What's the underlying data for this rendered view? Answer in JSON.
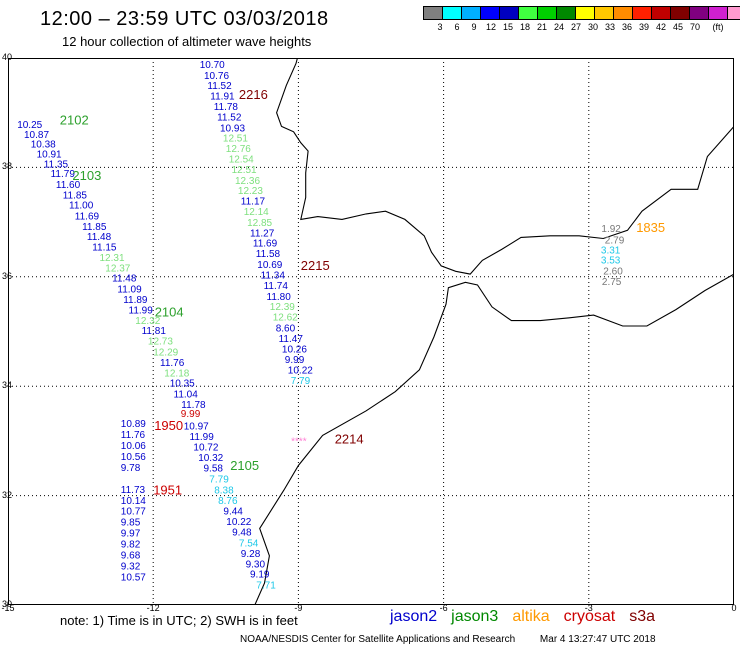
{
  "header": {
    "title": "12:00 – 23:59 UTC 03/03/2018",
    "subtitle": "12 hour collection of altimeter wave heights"
  },
  "legend": {
    "colors": [
      "#808080",
      "#00ffff",
      "#00b0ff",
      "#0000ff",
      "#0000c0",
      "#40ff40",
      "#00d000",
      "#008800",
      "#ffff00",
      "#ffc800",
      "#ff8c00",
      "#ff2000",
      "#c00000",
      "#800000",
      "#800080",
      "#d020d0",
      "#ff9ad0",
      "#000000"
    ],
    "ticks": [
      "3",
      "6",
      "9",
      "12",
      "15",
      "18",
      "21",
      "24",
      "27",
      "30",
      "33",
      "36",
      "39",
      "42",
      "45",
      "70",
      "(ft)"
    ]
  },
  "axes": {
    "x_labels": [
      "-15",
      "-12",
      "-9",
      "-6",
      "-3",
      "0"
    ],
    "y_labels": [
      "40",
      "38",
      "36",
      "34",
      "32",
      "30"
    ]
  },
  "track_colors": {
    "jason2": "#0000cc",
    "jason3": "#2ca02c",
    "jason3_value": "#7ee07e",
    "altika": "#ff9900",
    "cryosat": "#cc0000",
    "s3a": "#800000",
    "gray": "#777777",
    "cyan": "#1ec8e8",
    "pink": "#ff7fd4"
  },
  "tracks": [
    {
      "name": "pass-2102",
      "label": "2102",
      "label_color": "jason3",
      "label_pos": [
        -13.93,
        38.78
      ],
      "values": [
        {
          "v": "10.25",
          "c": "jason2",
          "p": [
            -14.81,
            38.72
          ]
        },
        {
          "v": "10.87",
          "c": "jason2",
          "p": [
            -14.67,
            38.54
          ]
        },
        {
          "v": "10.38",
          "c": "jason2",
          "p": [
            -14.53,
            38.36
          ]
        },
        {
          "v": "10.91",
          "c": "jason2",
          "p": [
            -14.41,
            38.18
          ]
        }
      ]
    },
    {
      "name": "pass-2103",
      "label": "2103",
      "label_color": "jason3",
      "label_pos": [
        -13.67,
        37.77
      ],
      "values": [
        {
          "v": "11.35",
          "c": "jason2",
          "p": [
            -14.26,
            38.0
          ]
        },
        {
          "v": "11.79",
          "c": "jason2",
          "p": [
            -14.12,
            37.82
          ]
        },
        {
          "v": "11.60",
          "c": "jason2",
          "p": [
            -14.01,
            37.62
          ]
        },
        {
          "v": "11.85",
          "c": "jason2",
          "p": [
            -13.87,
            37.43
          ]
        },
        {
          "v": "11.00",
          "c": "jason2",
          "p": [
            -13.74,
            37.25
          ]
        },
        {
          "v": "11.69",
          "c": "jason2",
          "p": [
            -13.62,
            37.05
          ]
        },
        {
          "v": "11.85",
          "c": "jason2",
          "p": [
            -13.47,
            36.86
          ]
        },
        {
          "v": "11.48",
          "c": "jason2",
          "p": [
            -13.37,
            36.67
          ]
        },
        {
          "v": "11.15",
          "c": "jason2",
          "p": [
            -13.26,
            36.48
          ]
        },
        {
          "v": "12.31",
          "c": "jason3_value",
          "p": [
            -13.11,
            36.29
          ]
        },
        {
          "v": "12.37",
          "c": "jason3_value",
          "p": [
            -12.99,
            36.1
          ]
        },
        {
          "v": "11.48",
          "c": "jason2",
          "p": [
            -12.85,
            35.91
          ]
        },
        {
          "v": "11.09",
          "c": "jason2",
          "p": [
            -12.74,
            35.71
          ]
        },
        {
          "v": "11.89",
          "c": "jason2",
          "p": [
            -12.62,
            35.52
          ]
        },
        {
          "v": "11.99",
          "c": "jason2",
          "p": [
            -12.51,
            35.33
          ]
        }
      ]
    },
    {
      "name": "pass-2104",
      "label": "2104",
      "label_color": "jason3",
      "label_pos": [
        -11.97,
        35.27
      ],
      "values": [
        {
          "v": "12.32",
          "c": "jason3_value",
          "p": [
            -12.37,
            35.14
          ]
        },
        {
          "v": "11.81",
          "c": "jason2",
          "p": [
            -12.24,
            34.95
          ]
        },
        {
          "v": "12.73",
          "c": "jason3_value",
          "p": [
            -12.11,
            34.76
          ]
        },
        {
          "v": "12.29",
          "c": "jason3_value",
          "p": [
            -12.0,
            34.56
          ]
        },
        {
          "v": "11.76",
          "c": "jason2",
          "p": [
            -11.86,
            34.37
          ]
        },
        {
          "v": "12.18",
          "c": "jason3_value",
          "p": [
            -11.77,
            34.18
          ]
        },
        {
          "v": "10.35",
          "c": "jason2",
          "p": [
            -11.66,
            33.99
          ]
        },
        {
          "v": "11.04",
          "c": "jason2",
          "p": [
            -11.58,
            33.79
          ]
        },
        {
          "v": "11.78",
          "c": "jason2",
          "p": [
            -11.42,
            33.6
          ]
        },
        {
          "v": "10.97",
          "c": "jason2",
          "p": [
            -11.37,
            33.21
          ]
        },
        {
          "v": "11.99",
          "c": "jason2",
          "p": [
            -11.25,
            33.02
          ]
        },
        {
          "v": "10.72",
          "c": "jason2",
          "p": [
            -11.17,
            32.82
          ]
        },
        {
          "v": "10.32",
          "c": "jason2",
          "p": [
            -11.07,
            32.63
          ]
        },
        {
          "v": "9.58",
          "c": "jason2",
          "p": [
            -10.96,
            32.44
          ]
        },
        {
          "v": "7.79",
          "c": "cyan",
          "p": [
            -10.84,
            32.24
          ]
        },
        {
          "v": "8.38",
          "c": "cyan",
          "p": [
            -10.74,
            32.04
          ]
        },
        {
          "v": "8.76",
          "c": "cyan",
          "p": [
            -10.66,
            31.85
          ]
        },
        {
          "v": "9.44",
          "c": "jason2",
          "p": [
            -10.55,
            31.65
          ]
        },
        {
          "v": "10.22",
          "c": "jason2",
          "p": [
            -10.49,
            31.46
          ]
        },
        {
          "v": "9.48",
          "c": "jason2",
          "p": [
            -10.37,
            31.27
          ]
        },
        {
          "v": "7.54",
          "c": "cyan",
          "p": [
            -10.23,
            31.07
          ]
        },
        {
          "v": "9.28",
          "c": "jason2",
          "p": [
            -10.19,
            30.88
          ]
        },
        {
          "v": "9.30",
          "c": "jason2",
          "p": [
            -10.09,
            30.69
          ]
        },
        {
          "v": "9.19",
          "c": "jason2",
          "p": [
            -10.0,
            30.5
          ]
        },
        {
          "v": "7.71",
          "c": "cyan",
          "p": [
            -9.87,
            30.3
          ]
        }
      ]
    },
    {
      "name": "pass-2105",
      "label": "2105",
      "label_color": "jason3",
      "label_pos": [
        -10.41,
        32.47
      ],
      "values": []
    },
    {
      "name": "pass-2216",
      "label": "2216",
      "label_color": "s3a",
      "label_pos": [
        -10.23,
        39.25
      ],
      "values": [
        {
          "v": "10.70",
          "c": "jason2",
          "p": [
            -11.04,
            39.82
          ]
        },
        {
          "v": "10.76",
          "c": "jason2",
          "p": [
            -10.95,
            39.62
          ]
        },
        {
          "v": "11.52",
          "c": "jason2",
          "p": [
            -10.88,
            39.43
          ]
        },
        {
          "v": "11.91",
          "c": "jason2",
          "p": [
            -10.82,
            39.24
          ]
        },
        {
          "v": "11.78",
          "c": "jason2",
          "p": [
            -10.75,
            39.05
          ]
        },
        {
          "v": "11.52",
          "c": "jason2",
          "p": [
            -10.68,
            38.86
          ]
        },
        {
          "v": "10.93",
          "c": "jason2",
          "p": [
            -10.62,
            38.66
          ]
        },
        {
          "v": "12.51",
          "c": "jason3_value",
          "p": [
            -10.56,
            38.47
          ]
        },
        {
          "v": "12.76",
          "c": "jason3_value",
          "p": [
            -10.5,
            38.28
          ]
        },
        {
          "v": "12.54",
          "c": "jason3_value",
          "p": [
            -10.44,
            38.09
          ]
        },
        {
          "v": "12.51",
          "c": "jason3_value",
          "p": [
            -10.38,
            37.9
          ]
        },
        {
          "v": "12.36",
          "c": "jason3_value",
          "p": [
            -10.31,
            37.7
          ]
        },
        {
          "v": "12.23",
          "c": "jason3_value",
          "p": [
            -10.25,
            37.51
          ]
        },
        {
          "v": "11.17",
          "c": "jason2",
          "p": [
            -10.19,
            37.32
          ]
        },
        {
          "v": "12.14",
          "c": "jason3_value",
          "p": [
            -10.13,
            37.13
          ]
        },
        {
          "v": "12.85",
          "c": "jason3_value",
          "p": [
            -10.06,
            36.93
          ]
        },
        {
          "v": "11.27",
          "c": "jason2",
          "p": [
            -10.0,
            36.74
          ]
        },
        {
          "v": "11.69",
          "c": "jason2",
          "p": [
            -9.94,
            36.55
          ]
        },
        {
          "v": "11.58",
          "c": "jason2",
          "p": [
            -9.88,
            36.36
          ]
        }
      ]
    },
    {
      "name": "pass-2215",
      "label": "2215",
      "label_color": "s3a",
      "label_pos": [
        -8.95,
        36.12
      ],
      "values": [
        {
          "v": "10.69",
          "c": "jason2",
          "p": [
            -9.85,
            36.16
          ]
        },
        {
          "v": "11.34",
          "c": "jason2",
          "p": [
            -9.78,
            35.97
          ]
        },
        {
          "v": "11.74",
          "c": "jason2",
          "p": [
            -9.72,
            35.78
          ]
        },
        {
          "v": "11.80",
          "c": "jason2",
          "p": [
            -9.66,
            35.58
          ]
        },
        {
          "v": "12.39",
          "c": "jason3_value",
          "p": [
            -9.59,
            35.39
          ]
        },
        {
          "v": "12.62",
          "c": "jason3_value",
          "p": [
            -9.53,
            35.2
          ]
        },
        {
          "v": "8.60",
          "c": "jason2",
          "p": [
            -9.47,
            35.0
          ]
        },
        {
          "v": "11.47",
          "c": "jason2",
          "p": [
            -9.41,
            34.81
          ]
        },
        {
          "v": "10.26",
          "c": "jason2",
          "p": [
            -9.34,
            34.62
          ]
        },
        {
          "v": "9.99",
          "c": "jason2",
          "p": [
            -9.28,
            34.42
          ]
        },
        {
          "v": "10.22",
          "c": "jason2",
          "p": [
            -9.22,
            34.23
          ]
        },
        {
          "v": "7.79",
          "c": "cyan",
          "p": [
            -9.16,
            34.04
          ]
        }
      ]
    },
    {
      "name": "pass-2214",
      "label": "2214",
      "label_color": "s3a",
      "label_pos": [
        -8.25,
        32.95
      ],
      "values": [
        {
          "v": "****",
          "c": "pink",
          "p": [
            -9.15,
            32.93
          ]
        }
      ]
    },
    {
      "name": "pass-1950",
      "label": "1950",
      "label_color": "cryosat",
      "label_pos": [
        -11.98,
        33.2
      ],
      "values": [
        {
          "v": "10.89",
          "c": "jason2",
          "p": [
            -12.67,
            33.25
          ]
        },
        {
          "v": "11.76",
          "c": "jason2",
          "p": [
            -12.67,
            33.05
          ]
        },
        {
          "v": "10.06",
          "c": "jason2",
          "p": [
            -12.67,
            32.85
          ]
        },
        {
          "v": "10.56",
          "c": "jason2",
          "p": [
            -12.67,
            32.65
          ]
        },
        {
          "v": "9.78",
          "c": "jason2",
          "p": [
            -12.67,
            32.45
          ]
        }
      ]
    },
    {
      "name": "pass-1951",
      "label": "1951",
      "label_color": "cryosat",
      "label_pos": [
        -12.0,
        32.02
      ],
      "values": [
        {
          "v": "11.73",
          "c": "jason2",
          "p": [
            -12.67,
            32.05
          ]
        },
        {
          "v": "10.14",
          "c": "jason2",
          "p": [
            -12.67,
            31.85
          ]
        },
        {
          "v": "10.77",
          "c": "jason2",
          "p": [
            -12.67,
            31.65
          ]
        },
        {
          "v": "9.85",
          "c": "jason2",
          "p": [
            -12.67,
            31.45
          ]
        },
        {
          "v": "9.97",
          "c": "jason2",
          "p": [
            -12.67,
            31.25
          ]
        },
        {
          "v": "9.82",
          "c": "jason2",
          "p": [
            -12.67,
            31.05
          ]
        },
        {
          "v": "9.68",
          "c": "jason2",
          "p": [
            -12.67,
            30.85
          ]
        },
        {
          "v": "9.32",
          "c": "jason2",
          "p": [
            -12.67,
            30.65
          ]
        },
        {
          "v": "10.57",
          "c": "jason2",
          "p": [
            -12.67,
            30.45
          ]
        }
      ]
    },
    {
      "name": "pass-1835",
      "label": "1835",
      "label_color": "altika",
      "label_pos": [
        -2.02,
        36.82
      ],
      "values": [
        {
          "v": "1.92",
          "c": "gray",
          "p": [
            -2.74,
            36.82
          ]
        },
        {
          "v": "2.79",
          "c": "gray",
          "p": [
            -2.67,
            36.61
          ]
        },
        {
          "v": "3.31",
          "c": "cyan",
          "p": [
            -2.75,
            36.43
          ]
        },
        {
          "v": "3.53",
          "c": "cyan",
          "p": [
            -2.75,
            36.24
          ]
        },
        {
          "v": "2.60",
          "c": "gray",
          "p": [
            -2.7,
            36.04
          ]
        },
        {
          "v": "2.75",
          "c": "gray",
          "p": [
            -2.73,
            35.85
          ]
        }
      ]
    }
  ],
  "extra_values": [
    {
      "v": "9.99",
      "c": "cryosat",
      "p": [
        -11.43,
        33.44
      ]
    }
  ],
  "footer": {
    "note": "note: 1) Time is in UTC; 2) SWH is in feet",
    "satellites": [
      {
        "label": "jason2",
        "color": "#0000cc"
      },
      {
        "label": "jason3",
        "color": "#008800"
      },
      {
        "label": "altika",
        "color": "#ff9900"
      },
      {
        "label": "cryosat",
        "color": "#cc0000"
      },
      {
        "label": "s3a",
        "color": "#800000"
      }
    ],
    "credit": "NOAA/NESDIS Center for Satellite Applications and Research",
    "timestamp": "Mar  4 13:27:47 UTC 2018"
  }
}
